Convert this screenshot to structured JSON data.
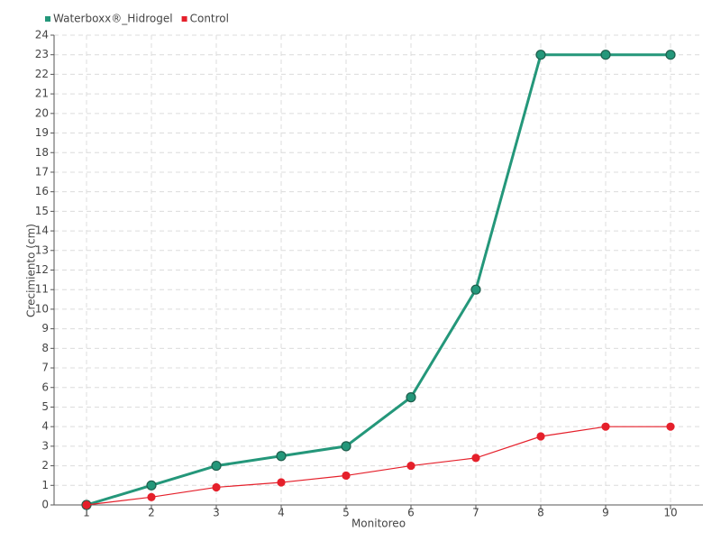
{
  "chart_data": {
    "type": "line",
    "x_label": "Monitoreo",
    "y_label": "Crecimiento (cm)",
    "categories": [
      "1",
      "2",
      "3",
      "4",
      "5",
      "6",
      "7",
      "8",
      "9",
      "10"
    ],
    "series": [
      {
        "name": "Waterboxx®_Hidrogel",
        "color": "#24977a",
        "values": [
          0,
          1,
          2,
          2.5,
          3,
          5.5,
          11,
          23,
          23,
          23
        ]
      },
      {
        "name": "Control",
        "color": "#e5202b",
        "values": [
          0,
          0.4,
          0.9,
          1.15,
          1.5,
          2,
          2.4,
          3.5,
          4,
          4
        ]
      }
    ],
    "ylim": [
      0,
      24
    ],
    "yticks": [
      0,
      1,
      2,
      3,
      4,
      5,
      6,
      7,
      8,
      9,
      10,
      11,
      12,
      13,
      14,
      15,
      16,
      17,
      18,
      19,
      20,
      21,
      22,
      23,
      24
    ],
    "grid": true,
    "legend": "top-left"
  }
}
